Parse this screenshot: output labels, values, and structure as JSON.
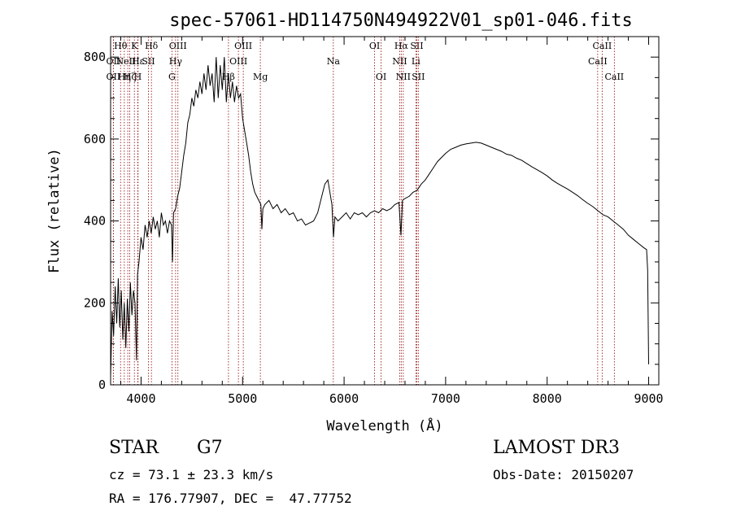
{
  "chart_data": {
    "type": "line",
    "title": "spec-57061-HD114750N494922V01_sp01-046.fits",
    "xlabel": "Wavelength (Å)",
    "ylabel": "Flux (relative)",
    "xlim": [
      3700,
      9100
    ],
    "ylim": [
      0,
      850
    ],
    "x_ticks": [
      4000,
      5000,
      6000,
      7000,
      8000,
      9000
    ],
    "y_ticks": [
      0,
      200,
      400,
      600,
      800
    ],
    "grid": false,
    "series": [
      {
        "color": "#000000",
        "points": [
          [
            3700,
            20
          ],
          [
            3715,
            180
          ],
          [
            3730,
            120
          ],
          [
            3745,
            240
          ],
          [
            3760,
            150
          ],
          [
            3775,
            260
          ],
          [
            3790,
            140
          ],
          [
            3805,
            230
          ],
          [
            3820,
            110
          ],
          [
            3835,
            200
          ],
          [
            3850,
            90
          ],
          [
            3865,
            210
          ],
          [
            3880,
            130
          ],
          [
            3895,
            250
          ],
          [
            3910,
            170
          ],
          [
            3925,
            230
          ],
          [
            3940,
            200
          ],
          [
            3955,
            60
          ],
          [
            3965,
            270
          ],
          [
            3980,
            300
          ],
          [
            4000,
            360
          ],
          [
            4020,
            330
          ],
          [
            4040,
            390
          ],
          [
            4060,
            360
          ],
          [
            4080,
            400
          ],
          [
            4100,
            370
          ],
          [
            4120,
            410
          ],
          [
            4140,
            380
          ],
          [
            4160,
            400
          ],
          [
            4180,
            360
          ],
          [
            4200,
            420
          ],
          [
            4220,
            390
          ],
          [
            4240,
            400
          ],
          [
            4260,
            370
          ],
          [
            4280,
            400
          ],
          [
            4300,
            390
          ],
          [
            4310,
            300
          ],
          [
            4320,
            420
          ],
          [
            4340,
            430
          ],
          [
            4360,
            460
          ],
          [
            4380,
            480
          ],
          [
            4400,
            520
          ],
          [
            4420,
            560
          ],
          [
            4440,
            590
          ],
          [
            4460,
            640
          ],
          [
            4480,
            660
          ],
          [
            4500,
            700
          ],
          [
            4520,
            680
          ],
          [
            4540,
            720
          ],
          [
            4560,
            700
          ],
          [
            4580,
            740
          ],
          [
            4600,
            710
          ],
          [
            4620,
            760
          ],
          [
            4640,
            720
          ],
          [
            4660,
            780
          ],
          [
            4680,
            730
          ],
          [
            4700,
            760
          ],
          [
            4720,
            690
          ],
          [
            4740,
            800
          ],
          [
            4760,
            700
          ],
          [
            4780,
            780
          ],
          [
            4800,
            720
          ],
          [
            4820,
            800
          ],
          [
            4840,
            690
          ],
          [
            4860,
            760
          ],
          [
            4880,
            700
          ],
          [
            4900,
            740
          ],
          [
            4920,
            690
          ],
          [
            4940,
            730
          ],
          [
            4960,
            700
          ],
          [
            4980,
            710
          ],
          [
            5000,
            650
          ],
          [
            5020,
            620
          ],
          [
            5040,
            590
          ],
          [
            5060,
            560
          ],
          [
            5080,
            520
          ],
          [
            5100,
            490
          ],
          [
            5120,
            470
          ],
          [
            5140,
            460
          ],
          [
            5160,
            450
          ],
          [
            5180,
            440
          ],
          [
            5190,
            380
          ],
          [
            5200,
            430
          ],
          [
            5220,
            440
          ],
          [
            5260,
            450
          ],
          [
            5300,
            430
          ],
          [
            5340,
            440
          ],
          [
            5380,
            420
          ],
          [
            5420,
            430
          ],
          [
            5460,
            415
          ],
          [
            5500,
            420
          ],
          [
            5540,
            400
          ],
          [
            5580,
            405
          ],
          [
            5620,
            390
          ],
          [
            5660,
            395
          ],
          [
            5700,
            400
          ],
          [
            5740,
            420
          ],
          [
            5780,
            460
          ],
          [
            5810,
            490
          ],
          [
            5840,
            500
          ],
          [
            5860,
            470
          ],
          [
            5880,
            440
          ],
          [
            5895,
            360
          ],
          [
            5910,
            410
          ],
          [
            5940,
            400
          ],
          [
            5980,
            410
          ],
          [
            6020,
            420
          ],
          [
            6060,
            405
          ],
          [
            6100,
            420
          ],
          [
            6140,
            415
          ],
          [
            6180,
            420
          ],
          [
            6220,
            410
          ],
          [
            6260,
            420
          ],
          [
            6300,
            425
          ],
          [
            6340,
            420
          ],
          [
            6380,
            430
          ],
          [
            6420,
            425
          ],
          [
            6460,
            430
          ],
          [
            6500,
            440
          ],
          [
            6540,
            445
          ],
          [
            6560,
            365
          ],
          [
            6575,
            450
          ],
          [
            6600,
            455
          ],
          [
            6640,
            460
          ],
          [
            6680,
            470
          ],
          [
            6720,
            475
          ],
          [
            6760,
            490
          ],
          [
            6800,
            500
          ],
          [
            6840,
            515
          ],
          [
            6880,
            530
          ],
          [
            6920,
            545
          ],
          [
            6960,
            555
          ],
          [
            7000,
            565
          ],
          [
            7050,
            575
          ],
          [
            7100,
            580
          ],
          [
            7150,
            585
          ],
          [
            7200,
            588
          ],
          [
            7250,
            590
          ],
          [
            7300,
            592
          ],
          [
            7350,
            590
          ],
          [
            7400,
            585
          ],
          [
            7450,
            580
          ],
          [
            7500,
            575
          ],
          [
            7550,
            570
          ],
          [
            7600,
            563
          ],
          [
            7650,
            560
          ],
          [
            7700,
            553
          ],
          [
            7750,
            548
          ],
          [
            7800,
            540
          ],
          [
            7850,
            532
          ],
          [
            7900,
            525
          ],
          [
            7950,
            518
          ],
          [
            8000,
            510
          ],
          [
            8050,
            500
          ],
          [
            8100,
            492
          ],
          [
            8150,
            485
          ],
          [
            8200,
            478
          ],
          [
            8250,
            470
          ],
          [
            8300,
            462
          ],
          [
            8350,
            452
          ],
          [
            8400,
            443
          ],
          [
            8450,
            435
          ],
          [
            8500,
            425
          ],
          [
            8550,
            415
          ],
          [
            8600,
            410
          ],
          [
            8650,
            400
          ],
          [
            8700,
            390
          ],
          [
            8750,
            380
          ],
          [
            8800,
            365
          ],
          [
            8850,
            355
          ],
          [
            8900,
            345
          ],
          [
            8950,
            335
          ],
          [
            8980,
            330
          ],
          [
            8990,
            280
          ],
          [
            9000,
            50
          ]
        ]
      }
    ],
    "lines_label_color": "#8b0000",
    "spectral_lines": [
      {
        "x": 3727,
        "label": "OII",
        "row": 2
      },
      {
        "x": 3727,
        "label": "OII",
        "row": 3
      },
      {
        "x": 3798,
        "label": "Hθ",
        "row": 1
      },
      {
        "x": 3835,
        "label": "Hη",
        "row": 3
      },
      {
        "x": 3869,
        "label": "NeIII",
        "row": 2
      },
      {
        "x": 3889,
        "label": "Hζ",
        "row": 3
      },
      {
        "x": 3934,
        "label": "K",
        "row": 1
      },
      {
        "x": 3968,
        "label": "H",
        "row": 3
      },
      {
        "x": 3970,
        "label": "Hε",
        "row": 2
      },
      {
        "x": 4072,
        "label": "SII",
        "row": 2
      },
      {
        "x": 4102,
        "label": "Hδ",
        "row": 1
      },
      {
        "x": 4304,
        "label": "G",
        "row": 3
      },
      {
        "x": 4340,
        "label": "Hγ",
        "row": 2
      },
      {
        "x": 4363,
        "label": "OIII",
        "row": 1
      },
      {
        "x": 4861,
        "label": "Hβ",
        "row": 3
      },
      {
        "x": 4959,
        "label": "OIII",
        "row": 2
      },
      {
        "x": 5007,
        "label": "OIII",
        "row": 1
      },
      {
        "x": 5175,
        "label": "Mg",
        "row": 3
      },
      {
        "x": 5894,
        "label": "Na",
        "row": 2
      },
      {
        "x": 6300,
        "label": "OI",
        "row": 1
      },
      {
        "x": 6364,
        "label": "OI",
        "row": 3
      },
      {
        "x": 6548,
        "label": "NII",
        "row": 2
      },
      {
        "x": 6563,
        "label": "Hα",
        "row": 1
      },
      {
        "x": 6583,
        "label": "NII",
        "row": 3
      },
      {
        "x": 6707,
        "label": "Li",
        "row": 2
      },
      {
        "x": 6716,
        "label": "SII",
        "row": 1
      },
      {
        "x": 6731,
        "label": "SII",
        "row": 3
      },
      {
        "x": 8498,
        "label": "CaII",
        "row": 2
      },
      {
        "x": 8542,
        "label": "CaII",
        "row": 1
      },
      {
        "x": 8662,
        "label": "CaII",
        "row": 3
      }
    ]
  },
  "info": {
    "class_label": "STAR",
    "subclass": "G7",
    "survey": "LAMOST DR3",
    "cz": "cz = 73.1 ± 23.3 km/s",
    "obs_date": "Obs-Date: 20150207",
    "coords": "RA = 176.77907, DEC =  47.77752"
  }
}
